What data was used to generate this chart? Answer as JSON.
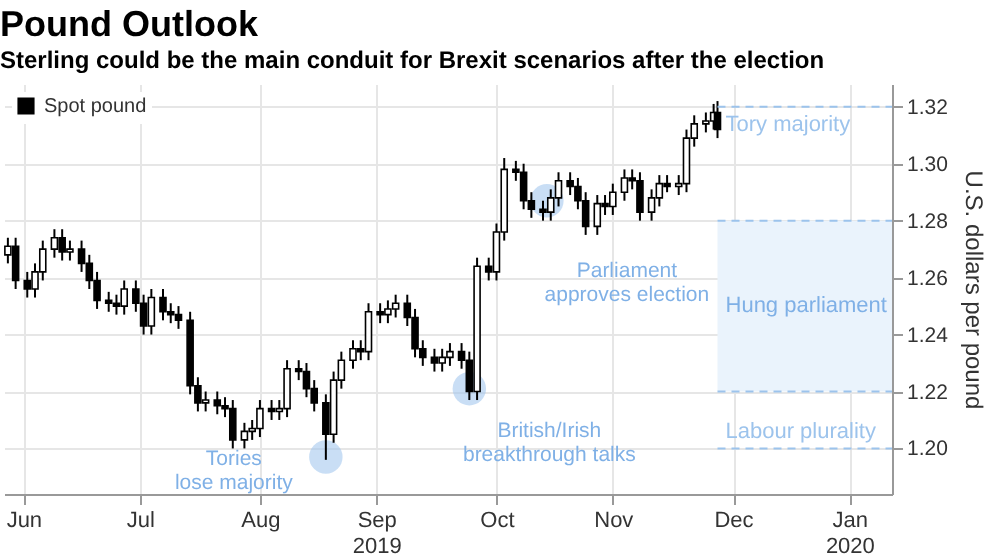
{
  "chart_data": {
    "type": "candlestick",
    "title": "Pound Outlook",
    "subtitle": "Sterling could be the main conduit for Brexit scenarios after the election",
    "ylabel": "U.S. dollars per pound",
    "x": [
      "2019-06-12",
      "2019-06-14",
      "2019-06-17",
      "2019-06-19",
      "2019-06-21",
      "2019-06-24",
      "2019-06-26",
      "2019-06-28",
      "2019-07-01",
      "2019-07-03",
      "2019-07-05",
      "2019-07-08",
      "2019-07-10",
      "2019-07-12",
      "2019-07-15",
      "2019-07-17",
      "2019-07-19",
      "2019-07-22",
      "2019-07-24",
      "2019-07-26",
      "2019-07-29",
      "2019-07-31",
      "2019-08-02",
      "2019-08-05",
      "2019-08-07",
      "2019-08-09",
      "2019-08-12",
      "2019-08-14",
      "2019-08-16",
      "2019-08-19",
      "2019-08-21",
      "2019-08-23",
      "2019-08-26",
      "2019-08-28",
      "2019-08-30",
      "2019-09-02",
      "2019-09-04",
      "2019-09-06",
      "2019-09-09",
      "2019-09-11",
      "2019-09-13",
      "2019-09-16",
      "2019-09-18",
      "2019-09-20",
      "2019-09-23",
      "2019-09-25",
      "2019-09-27",
      "2019-09-30",
      "2019-10-02",
      "2019-10-04",
      "2019-10-07",
      "2019-10-09",
      "2019-10-11",
      "2019-10-14",
      "2019-10-16",
      "2019-10-18",
      "2019-10-21",
      "2019-10-23",
      "2019-10-25",
      "2019-10-28",
      "2019-10-30",
      "2019-11-01",
      "2019-11-04",
      "2019-11-06",
      "2019-11-08",
      "2019-11-11",
      "2019-11-13",
      "2019-11-15",
      "2019-11-18",
      "2019-11-20",
      "2019-11-22",
      "2019-11-25",
      "2019-11-27",
      "2019-11-29",
      "2019-12-02",
      "2019-12-04",
      "2019-12-06",
      "2019-12-09",
      "2019-12-11",
      "2019-12-12"
    ],
    "series": [
      {
        "name": "Spot pound",
        "color": "#000000",
        "ohlc": [
          [
            1.268,
            1.274,
            1.265,
            1.271
          ],
          [
            1.271,
            1.274,
            1.256,
            1.259
          ],
          [
            1.259,
            1.262,
            1.253,
            1.256
          ],
          [
            1.256,
            1.265,
            1.253,
            1.262
          ],
          [
            1.262,
            1.273,
            1.259,
            1.27
          ],
          [
            1.27,
            1.277,
            1.267,
            1.274
          ],
          [
            1.274,
            1.277,
            1.266,
            1.269
          ],
          [
            1.269,
            1.273,
            1.266,
            1.27
          ],
          [
            1.27,
            1.273,
            1.262,
            1.265
          ],
          [
            1.265,
            1.268,
            1.256,
            1.259
          ],
          [
            1.259,
            1.262,
            1.249,
            1.252
          ],
          [
            1.252,
            1.255,
            1.248,
            1.251
          ],
          [
            1.251,
            1.254,
            1.247,
            1.25
          ],
          [
            1.25,
            1.259,
            1.247,
            1.256
          ],
          [
            1.256,
            1.259,
            1.248,
            1.251
          ],
          [
            1.251,
            1.254,
            1.24,
            1.243
          ],
          [
            1.243,
            1.256,
            1.24,
            1.253
          ],
          [
            1.253,
            1.256,
            1.245,
            1.248
          ],
          [
            1.248,
            1.251,
            1.244,
            1.247
          ],
          [
            1.247,
            1.25,
            1.242,
            1.245
          ],
          [
            1.245,
            1.248,
            1.219,
            1.222
          ],
          [
            1.222,
            1.225,
            1.213,
            1.216
          ],
          [
            1.216,
            1.22,
            1.213,
            1.217
          ],
          [
            1.217,
            1.22,
            1.212,
            1.215
          ],
          [
            1.215,
            1.218,
            1.211,
            1.214
          ],
          [
            1.214,
            1.217,
            1.2,
            1.203
          ],
          [
            1.203,
            1.209,
            1.2,
            1.206
          ],
          [
            1.206,
            1.21,
            1.203,
            1.207
          ],
          [
            1.207,
            1.217,
            1.204,
            1.214
          ],
          [
            1.214,
            1.217,
            1.21,
            1.213
          ],
          [
            1.213,
            1.217,
            1.21,
            1.214
          ],
          [
            1.214,
            1.231,
            1.211,
            1.228
          ],
          [
            1.228,
            1.231,
            1.224,
            1.227
          ],
          [
            1.227,
            1.23,
            1.218,
            1.221
          ],
          [
            1.221,
            1.224,
            1.213,
            1.216
          ],
          [
            1.216,
            1.219,
            1.196,
            1.205
          ],
          [
            1.205,
            1.227,
            1.202,
            1.224
          ],
          [
            1.224,
            1.234,
            1.221,
            1.231
          ],
          [
            1.231,
            1.238,
            1.228,
            1.235
          ],
          [
            1.235,
            1.238,
            1.231,
            1.234
          ],
          [
            1.234,
            1.251,
            1.231,
            1.248
          ],
          [
            1.248,
            1.251,
            1.244,
            1.247
          ],
          [
            1.247,
            1.252,
            1.244,
            1.249
          ],
          [
            1.249,
            1.254,
            1.246,
            1.251
          ],
          [
            1.251,
            1.254,
            1.243,
            1.246
          ],
          [
            1.246,
            1.249,
            1.232,
            1.235
          ],
          [
            1.235,
            1.238,
            1.229,
            1.232
          ],
          [
            1.232,
            1.235,
            1.227,
            1.23
          ],
          [
            1.23,
            1.235,
            1.227,
            1.232
          ],
          [
            1.232,
            1.237,
            1.229,
            1.234
          ],
          [
            1.234,
            1.237,
            1.228,
            1.231
          ],
          [
            1.231,
            1.234,
            1.217,
            1.22
          ],
          [
            1.22,
            1.267,
            1.217,
            1.264
          ],
          [
            1.264,
            1.267,
            1.259,
            1.262
          ],
          [
            1.262,
            1.279,
            1.259,
            1.276
          ],
          [
            1.276,
            1.302,
            1.273,
            1.298
          ],
          [
            1.298,
            1.301,
            1.294,
            1.297
          ],
          [
            1.297,
            1.3,
            1.284,
            1.287
          ],
          [
            1.287,
            1.29,
            1.281,
            1.284
          ],
          [
            1.284,
            1.287,
            1.28,
            1.283
          ],
          [
            1.283,
            1.291,
            1.28,
            1.288
          ],
          [
            1.288,
            1.297,
            1.285,
            1.294
          ],
          [
            1.294,
            1.297,
            1.289,
            1.292
          ],
          [
            1.292,
            1.295,
            1.284,
            1.287
          ],
          [
            1.287,
            1.29,
            1.275,
            1.278
          ],
          [
            1.278,
            1.289,
            1.275,
            1.286
          ],
          [
            1.286,
            1.289,
            1.282,
            1.285
          ],
          [
            1.285,
            1.293,
            1.282,
            1.29
          ],
          [
            1.29,
            1.298,
            1.287,
            1.295
          ],
          [
            1.295,
            1.298,
            1.291,
            1.294
          ],
          [
            1.294,
            1.297,
            1.28,
            1.283
          ],
          [
            1.283,
            1.291,
            1.28,
            1.288
          ],
          [
            1.288,
            1.296,
            1.285,
            1.293
          ],
          [
            1.293,
            1.296,
            1.29,
            1.292
          ],
          [
            1.292,
            1.296,
            1.289,
            1.293
          ],
          [
            1.293,
            1.312,
            1.29,
            1.309
          ],
          [
            1.309,
            1.317,
            1.306,
            1.314
          ],
          [
            1.314,
            1.318,
            1.311,
            1.315
          ],
          [
            1.315,
            1.321,
            1.312,
            1.318
          ],
          [
            1.318,
            1.322,
            1.309,
            1.312
          ]
        ]
      }
    ],
    "xlim": [
      "2019-06-11",
      "2020-01-26"
    ],
    "xticks": [
      {
        "value": "2019-06-16",
        "label": "Jun"
      },
      {
        "value": "2019-07-16",
        "label": "Jul"
      },
      {
        "value": "2019-08-16",
        "label": "Aug"
      },
      {
        "value": "2019-09-15",
        "label": "Sep\n2019"
      },
      {
        "value": "2019-10-16",
        "label": "Oct"
      },
      {
        "value": "2019-11-15",
        "label": "Nov"
      },
      {
        "value": "2019-12-16",
        "label": "Dec"
      },
      {
        "value": "2020-01-15",
        "label": "Jan\n2020"
      }
    ],
    "ylim": [
      1.184,
      1.328
    ],
    "yticks": [
      {
        "value": 1.2,
        "label": "1.20"
      },
      {
        "value": 1.22,
        "label": "1.22"
      },
      {
        "value": 1.24,
        "label": "1.24"
      },
      {
        "value": 1.26,
        "label": "1.26"
      },
      {
        "value": 1.28,
        "label": "1.28"
      },
      {
        "value": 1.3,
        "label": "1.30"
      },
      {
        "value": 1.32,
        "label": "1.32"
      }
    ],
    "grid": true,
    "legend": "top left",
    "ref_lines": [
      {
        "axis": "y",
        "value": 1.32,
        "label": "Tory majority",
        "color": "#9cc3ec",
        "line_style": "dashed"
      },
      {
        "axis": "y",
        "value": 1.28,
        "label": null,
        "color": "#9cc3ec",
        "line_style": "dashed"
      },
      {
        "axis": "y",
        "value": 1.22,
        "label": null,
        "color": "#9cc3ec",
        "line_style": "dashed"
      },
      {
        "axis": "y",
        "value": 1.2,
        "label": "Labour plurality",
        "color": "#9cc3ec",
        "line_style": "dashed"
      }
    ],
    "bands": [
      {
        "axis": "y",
        "from": 1.22,
        "to": 1.28,
        "label": "Hung parliament",
        "color": "#eaf3fc"
      }
    ],
    "annotations": [
      {
        "text": "Tories\nlose majority",
        "x": "2019-09-02",
        "y": 1.197
      },
      {
        "text": "British/Irish\nbreakthrough talks",
        "x": "2019-10-09",
        "y": 1.221
      },
      {
        "text": "Parliament\napproves election",
        "x": "2019-10-29",
        "y": 1.287
      }
    ]
  }
}
